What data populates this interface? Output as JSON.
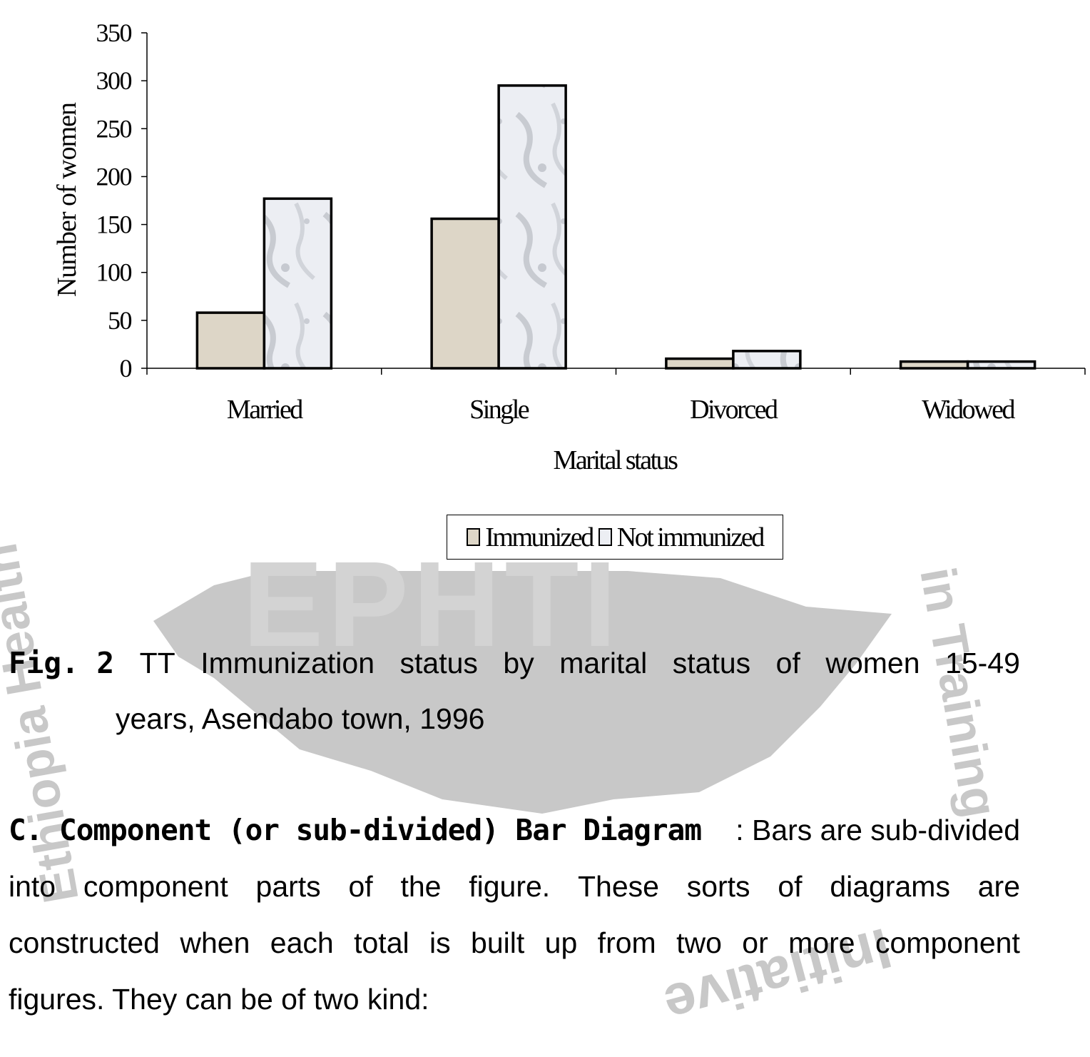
{
  "chart_data": {
    "type": "bar",
    "categories": [
      "Married",
      "Single",
      "Divorced",
      "Widowed"
    ],
    "series": [
      {
        "name": "Immunized",
        "values": [
          58,
          156,
          10,
          7
        ],
        "color": "#ddd6c7"
      },
      {
        "name": "Not immunized",
        "values": [
          177,
          295,
          18,
          7
        ],
        "color": "#eceef3"
      }
    ],
    "xlabel": "Marital status",
    "ylabel": "Number of women",
    "ylim": [
      0,
      350
    ],
    "yticks": [
      0,
      50,
      100,
      150,
      200,
      250,
      300,
      350
    ],
    "grid": false,
    "legend_position": "bottom"
  },
  "caption": {
    "label": "Fig. 2",
    "line1_words": [
      "TT",
      "Immunization",
      "status",
      "by",
      "marital",
      "status",
      "of",
      "women",
      "15-49"
    ],
    "line2": "years, Asendabo town, 1996"
  },
  "paragraph": {
    "heading": "C.  Component (or sub-divided) Bar Diagram",
    "line1_rest": ": Bars are sub-divided",
    "line2_words": [
      "into",
      "component",
      "parts",
      "of",
      "the",
      "figure.",
      "These",
      "sorts",
      "of",
      "diagrams",
      "are"
    ],
    "line3_words": [
      "constructed",
      "when",
      "each",
      "total",
      "is",
      "built",
      "up",
      "from",
      "two",
      "or",
      "more",
      "component"
    ],
    "line4": "figures. They can be of two kind:"
  },
  "watermark": {
    "left_arc": "Ethiopia Health",
    "right_arc": "in Training",
    "bottom_arc": "Initiative",
    "center_text": "EPHTI",
    "color": "#c8c8c8"
  }
}
